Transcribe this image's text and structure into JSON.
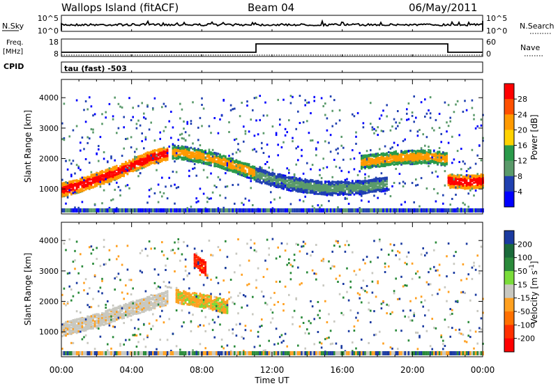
{
  "header": {
    "site": "Wallops Island (fitACF)",
    "beam": "Beam 04",
    "date": "06/May/2011"
  },
  "noise_panel": {
    "left_label": "N.Sky",
    "left_ticks": [
      "10^5",
      "10^0"
    ],
    "right_label": "N.Search",
    "right_ticks": [
      "10^5",
      "10^0"
    ]
  },
  "freq_panel": {
    "left_label_1": "Freq.",
    "left_label_2": "[MHz]",
    "left_ticks": [
      "18",
      "8"
    ],
    "right_label": "Nave",
    "right_ticks": [
      "60",
      "0"
    ]
  },
  "cpid": {
    "label": "CPID",
    "mode": "tau (fast) -503"
  },
  "time_axis": {
    "title": "Time UT",
    "ticks": [
      "00:00",
      "04:00",
      "08:00",
      "12:00",
      "16:00",
      "20:00",
      "00:00"
    ]
  },
  "colorbars": {
    "power": {
      "title": "Power [dB]",
      "ticks": [
        "28",
        "24",
        "20",
        "16",
        "12",
        "8",
        "4"
      ],
      "colors": [
        "#ff0000",
        "#ff5000",
        "#ff9a00",
        "#ffd200",
        "#2a9a4a",
        "#5a9a6a",
        "#2040b0",
        "#0000ff"
      ]
    },
    "velocity": {
      "title": "Velocity [m s",
      "title_sup": "-1",
      "title_end": "]",
      "ticks": [
        "200",
        "100",
        "50",
        "15",
        "-15",
        "-50",
        "-100",
        "-200"
      ],
      "colors": [
        "#1a3aa0",
        "#1a6a3a",
        "#2a8a3a",
        "#7adc3a",
        "#c8c8c0",
        "#ffa020",
        "#ff7000",
        "#ff3000",
        "#ff0000"
      ]
    }
  },
  "chart_data": [
    {
      "type": "heatmap",
      "title": "Power [dB]",
      "xlabel": "Time UT",
      "ylabel": "Slant Range [km]",
      "xlim": [
        0,
        24
      ],
      "ylim": [
        180,
        4600
      ],
      "yticks": [
        1000,
        2000,
        3000,
        4000
      ],
      "colorbar_range": [
        0,
        30
      ],
      "colorbar_ticks": [
        4,
        8,
        12,
        16,
        20,
        24,
        28
      ],
      "features": [
        {
          "name": "band",
          "t": [
            0,
            1,
            2,
            3,
            4,
            5,
            6
          ],
          "range_km": [
            1000,
            1150,
            1350,
            1550,
            1800,
            2050,
            2200
          ],
          "power_db": 22
        },
        {
          "name": "band",
          "t": [
            6.2,
            7,
            8,
            9,
            10,
            11
          ],
          "range_km": [
            2250,
            2200,
            2100,
            1950,
            1750,
            1550
          ],
          "power_db": 18
        },
        {
          "name": "band",
          "t": [
            11,
            13,
            15,
            17,
            18.5
          ],
          "range_km": [
            1500,
            1200,
            1050,
            1080,
            1200
          ],
          "power_db": 10
        },
        {
          "name": "band",
          "t": [
            17,
            19,
            21,
            22
          ],
          "range_km": [
            1900,
            2050,
            2100,
            2000
          ],
          "power_db": 16
        },
        {
          "name": "band",
          "t": [
            22,
            23,
            24
          ],
          "range_km": [
            1300,
            1250,
            1300
          ],
          "power_db": 20
        }
      ]
    },
    {
      "type": "heatmap",
      "title": "Velocity [m s-1]",
      "xlabel": "Time UT",
      "ylabel": "Slant Range [km]",
      "xlim": [
        0,
        24
      ],
      "ylim": [
        180,
        4600
      ],
      "yticks": [
        1000,
        2000,
        3000,
        4000
      ],
      "colorbar_range": [
        -250,
        250
      ],
      "colorbar_ticks": [
        200,
        100,
        50,
        15,
        -15,
        -50,
        -100,
        -200
      ],
      "features": [
        {
          "name": "band",
          "t": [
            0,
            2,
            4,
            6
          ],
          "range_km": [
            1100,
            1400,
            1800,
            2150
          ],
          "velocity_ms": -10
        },
        {
          "name": "band",
          "t": [
            6.5,
            8,
            9.5
          ],
          "range_km": [
            2200,
            2050,
            1850
          ],
          "velocity_ms": -60
        },
        {
          "name": "band",
          "t": [
            7.5,
            8.2
          ],
          "range_km": [
            3400,
            3100
          ],
          "velocity_ms": -220
        }
      ]
    }
  ]
}
